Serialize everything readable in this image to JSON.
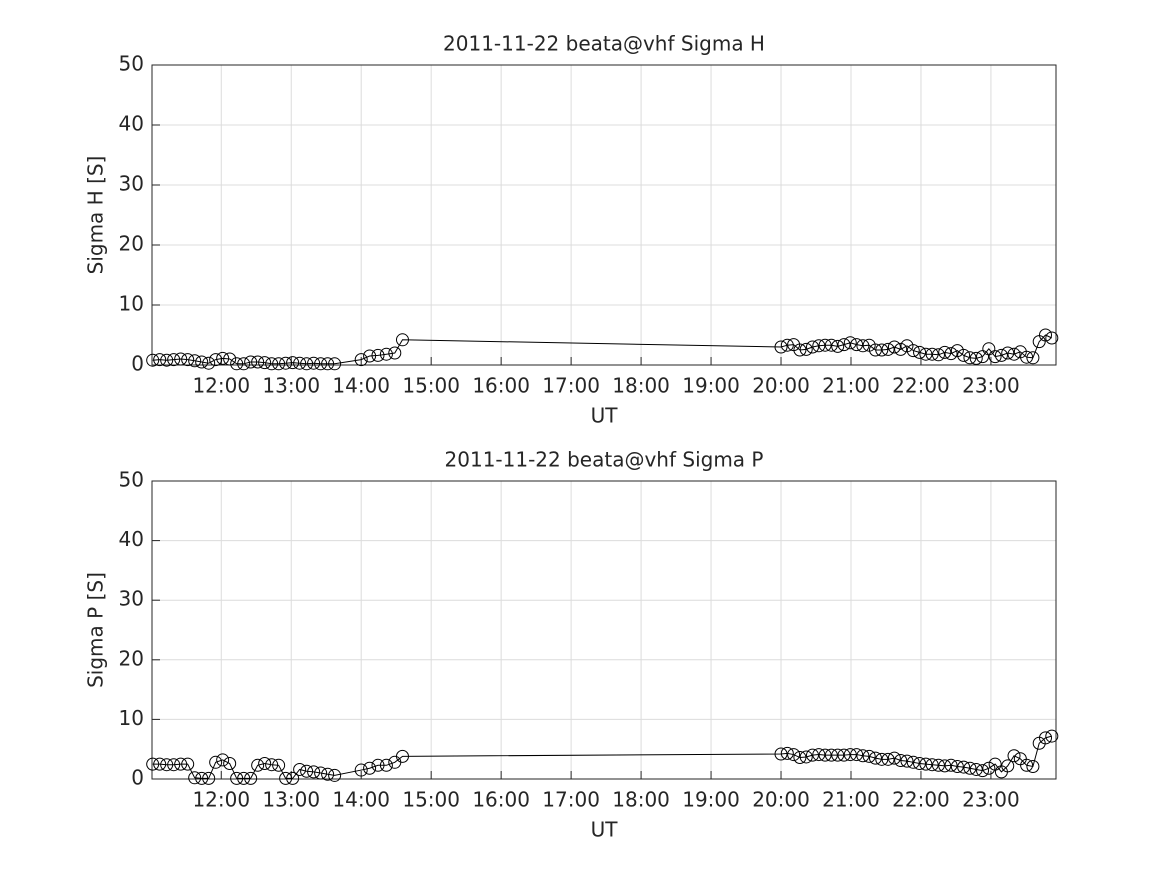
{
  "chart_data": [
    {
      "type": "line",
      "title": "2011-11-22  beata@vhf Sigma H",
      "xlabel": "UT",
      "ylabel": "Sigma H [S]",
      "color": "#000000",
      "marker": "circle",
      "grid": true,
      "x": [
        11.02,
        11.12,
        11.22,
        11.32,
        11.42,
        11.52,
        11.62,
        11.72,
        11.82,
        11.92,
        12.02,
        12.12,
        12.22,
        12.32,
        12.42,
        12.52,
        12.62,
        12.72,
        12.82,
        12.92,
        13.02,
        13.12,
        13.22,
        13.32,
        13.42,
        13.52,
        13.62,
        14.0,
        14.12,
        14.24,
        14.36,
        14.48,
        14.59,
        20.0,
        20.09,
        20.18,
        20.27,
        20.36,
        20.45,
        20.54,
        20.63,
        20.72,
        20.81,
        20.9,
        20.99,
        21.08,
        21.17,
        21.26,
        21.35,
        21.44,
        21.53,
        21.62,
        21.71,
        21.8,
        21.89,
        21.98,
        22.07,
        22.16,
        22.25,
        22.34,
        22.43,
        22.52,
        22.61,
        22.7,
        22.79,
        22.88,
        22.97,
        23.06,
        23.15,
        23.24,
        23.33,
        23.42,
        23.51,
        23.6,
        23.69,
        23.78,
        23.87
      ],
      "values": [
        0.8,
        0.9,
        0.8,
        0.9,
        1.0,
        0.9,
        0.7,
        0.5,
        0.3,
        0.9,
        1.1,
        1.0,
        0.2,
        0.2,
        0.5,
        0.5,
        0.4,
        0.2,
        0.2,
        0.3,
        0.4,
        0.3,
        0.2,
        0.3,
        0.2,
        0.2,
        0.2,
        0.9,
        1.5,
        1.6,
        1.8,
        2.0,
        4.2,
        3.0,
        3.3,
        3.4,
        2.5,
        2.6,
        3.0,
        3.2,
        3.3,
        3.3,
        3.1,
        3.4,
        3.7,
        3.4,
        3.2,
        3.3,
        2.5,
        2.5,
        2.6,
        3.0,
        2.6,
        3.2,
        2.4,
        2.1,
        1.8,
        1.8,
        1.7,
        2.1,
        1.9,
        2.4,
        1.6,
        1.2,
        1.1,
        1.4,
        2.7,
        1.4,
        1.6,
        2.0,
        1.8,
        2.2,
        1.3,
        1.2,
        3.9,
        5.0,
        4.5
      ],
      "xlim": [
        11.01,
        23.93
      ],
      "xticks": [
        {
          "value": 12,
          "label": "12:00"
        },
        {
          "value": 13,
          "label": "13:00"
        },
        {
          "value": 14,
          "label": "14:00"
        },
        {
          "value": 15,
          "label": "15:00"
        },
        {
          "value": 16,
          "label": "16:00"
        },
        {
          "value": 17,
          "label": "17:00"
        },
        {
          "value": 18,
          "label": "18:00"
        },
        {
          "value": 19,
          "label": "19:00"
        },
        {
          "value": 20,
          "label": "20:00"
        },
        {
          "value": 21,
          "label": "21:00"
        },
        {
          "value": 22,
          "label": "22:00"
        },
        {
          "value": 23,
          "label": "23:00"
        }
      ],
      "ylim": [
        0,
        50
      ],
      "yticks": [
        0,
        10,
        20,
        30,
        40,
        50
      ]
    },
    {
      "type": "line",
      "title": "2011-11-22  beata@vhf Sigma P",
      "xlabel": "UT",
      "ylabel": "Sigma P [S]",
      "color": "#000000",
      "marker": "circle",
      "grid": true,
      "x": [
        11.02,
        11.12,
        11.22,
        11.32,
        11.42,
        11.52,
        11.62,
        11.72,
        11.82,
        11.92,
        12.02,
        12.12,
        12.22,
        12.32,
        12.42,
        12.52,
        12.62,
        12.72,
        12.82,
        12.92,
        13.02,
        13.12,
        13.22,
        13.32,
        13.42,
        13.52,
        13.62,
        14.0,
        14.12,
        14.24,
        14.36,
        14.48,
        14.59,
        20.0,
        20.09,
        20.18,
        20.27,
        20.36,
        20.45,
        20.54,
        20.63,
        20.72,
        20.81,
        20.9,
        20.99,
        21.08,
        21.17,
        21.26,
        21.35,
        21.44,
        21.53,
        21.62,
        21.71,
        21.8,
        21.89,
        21.98,
        22.07,
        22.16,
        22.25,
        22.34,
        22.43,
        22.52,
        22.61,
        22.7,
        22.79,
        22.88,
        22.97,
        23.06,
        23.15,
        23.24,
        23.33,
        23.42,
        23.51,
        23.6,
        23.69,
        23.78,
        23.87
      ],
      "values": [
        2.5,
        2.5,
        2.4,
        2.4,
        2.5,
        2.5,
        0.2,
        0.1,
        0.1,
        2.8,
        3.2,
        2.6,
        0.1,
        0.1,
        0.1,
        2.3,
        2.6,
        2.4,
        2.3,
        0.1,
        0.1,
        1.6,
        1.3,
        1.2,
        1.0,
        0.8,
        0.6,
        1.5,
        1.8,
        2.3,
        2.3,
        2.8,
        3.8,
        4.2,
        4.3,
        4.1,
        3.6,
        3.7,
        4.0,
        4.1,
        4.0,
        4.0,
        4.0,
        4.0,
        4.1,
        4.1,
        3.9,
        3.8,
        3.5,
        3.3,
        3.3,
        3.5,
        3.1,
        3.0,
        2.8,
        2.6,
        2.5,
        2.4,
        2.3,
        2.2,
        2.3,
        2.1,
        2.0,
        1.8,
        1.6,
        1.4,
        1.8,
        2.5,
        1.2,
        2.2,
        3.9,
        3.4,
        2.3,
        2.1,
        6.0,
        6.9,
        7.2
      ],
      "xlim": [
        11.01,
        23.93
      ],
      "xticks": [
        {
          "value": 12,
          "label": "12:00"
        },
        {
          "value": 13,
          "label": "13:00"
        },
        {
          "value": 14,
          "label": "14:00"
        },
        {
          "value": 15,
          "label": "15:00"
        },
        {
          "value": 16,
          "label": "16:00"
        },
        {
          "value": 17,
          "label": "17:00"
        },
        {
          "value": 18,
          "label": "18:00"
        },
        {
          "value": 19,
          "label": "19:00"
        },
        {
          "value": 20,
          "label": "20:00"
        },
        {
          "value": 21,
          "label": "21:00"
        },
        {
          "value": 22,
          "label": "22:00"
        },
        {
          "value": 23,
          "label": "23:00"
        }
      ],
      "ylim": [
        0,
        50
      ],
      "yticks": [
        0,
        10,
        20,
        30,
        40,
        50
      ]
    }
  ]
}
